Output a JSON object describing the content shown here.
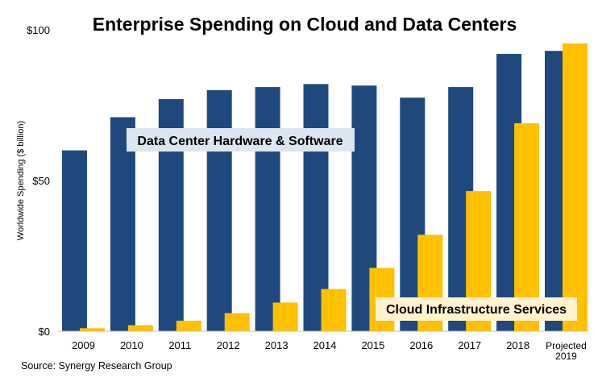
{
  "chart_data": {
    "type": "bar",
    "title": "Enterprise Spending on Cloud and Data Centers",
    "ylabel": "Worldwide Spending ($ billion)",
    "xlabel": "",
    "ylim": [
      0,
      100
    ],
    "yticks": [
      0,
      50,
      100
    ],
    "ytick_labels": [
      "$0",
      "$50",
      "$100"
    ],
    "grid": false,
    "categories": [
      "2009",
      "2010",
      "2011",
      "2012",
      "2013",
      "2014",
      "2015",
      "2016",
      "2017",
      "2018",
      "Projected 2019"
    ],
    "series": [
      {
        "name": "Data Center Hardware & Software",
        "color": "#1F497D",
        "values": [
          60,
          71,
          77,
          80,
          81,
          82,
          81.5,
          77.5,
          81,
          92,
          93
        ]
      },
      {
        "name": "Cloud Infrastructure Services",
        "color": "#FFC000",
        "values": [
          1,
          2,
          3.5,
          6,
          9.5,
          14,
          21,
          32,
          46.5,
          69,
          95.5
        ]
      }
    ],
    "source": "Source: Synergy Research Group",
    "label_box_colors": {
      "dc": "#DCE6F1",
      "cloud": "#FFF2CC"
    }
  }
}
